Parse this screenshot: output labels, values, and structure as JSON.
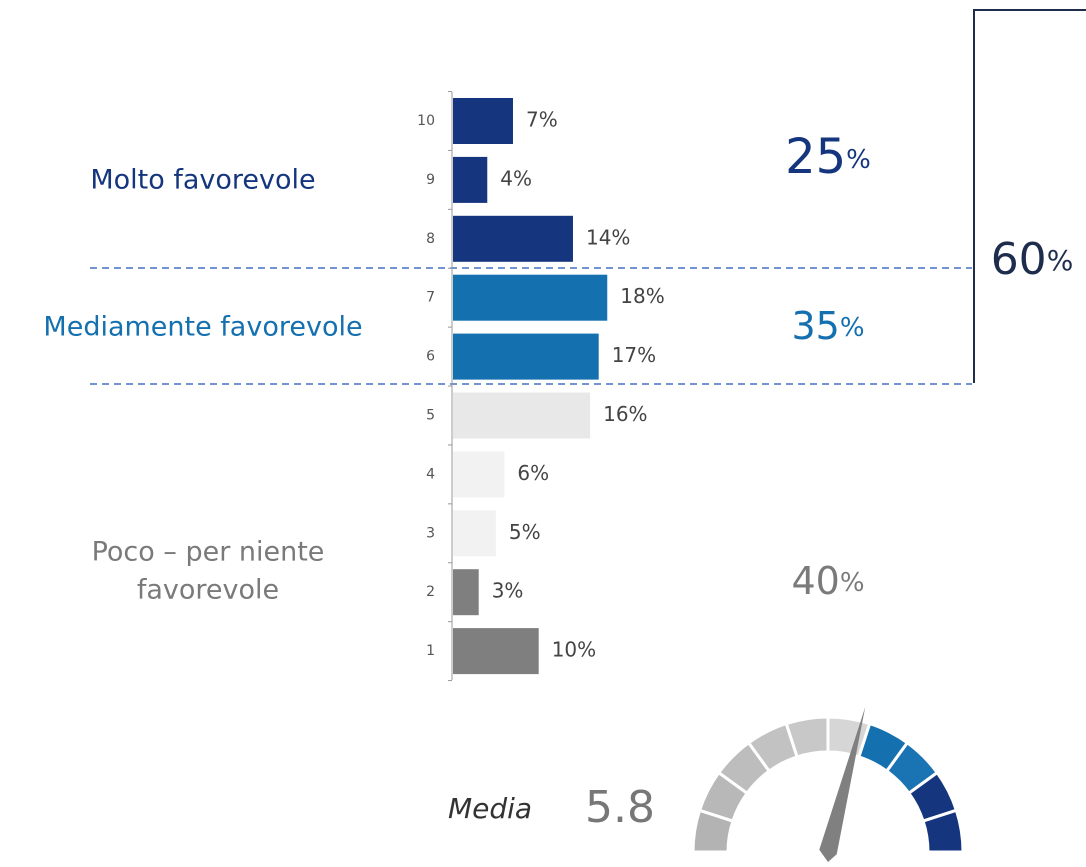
{
  "chart_data": {
    "type": "bar",
    "orientation": "horizontal",
    "categories": [
      "10",
      "9",
      "8",
      "7",
      "6",
      "5",
      "4",
      "3",
      "2",
      "1"
    ],
    "values": [
      7,
      4,
      14,
      18,
      17,
      16,
      6,
      5,
      3,
      10
    ],
    "value_labels": [
      "7%",
      "4%",
      "14%",
      "18%",
      "17%",
      "16%",
      "6%",
      "5%",
      "3%",
      "10%"
    ],
    "colors": [
      "#15367e",
      "#15367e",
      "#15367e",
      "#1570b0",
      "#1570b0",
      "#e8e8e8",
      "#f2f2f2",
      "#f2f2f2",
      "#7f7f7f",
      "#7f7f7f"
    ],
    "groups": [
      {
        "label_lines": [
          "Molto favorevole"
        ],
        "total": 25,
        "total_label": "25%",
        "color": "#15367e"
      },
      {
        "label_lines": [
          "Mediamente favorevole"
        ],
        "total": 35,
        "total_label": "35%",
        "color": "#1570b0"
      },
      {
        "label_lines": [
          "Poco – per niente",
          "favorevole"
        ],
        "total": 40,
        "total_label": "40%",
        "color": "#7a7a7a"
      }
    ],
    "favorable_total": 60,
    "favorable_total_label": "60%",
    "mean_label": "Media",
    "mean": 5.8,
    "mean_range": [
      0,
      10
    ]
  }
}
